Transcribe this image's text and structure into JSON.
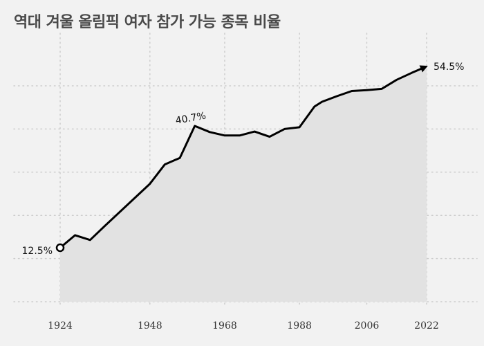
{
  "chart_data": {
    "type": "area",
    "title": "역대 겨울 올림픽 여자 참가 가능 종목 비율",
    "xlabel": "",
    "ylabel": "",
    "x_ticks": [
      "1924",
      "1948",
      "1968",
      "1988",
      "2006",
      "2022"
    ],
    "xlim": [
      1924,
      2022
    ],
    "ylim": [
      0,
      60
    ],
    "grid": true,
    "series": [
      {
        "x": [
          1924,
          1928,
          1932,
          1936,
          1948,
          1952,
          1956,
          1960,
          1964,
          1968,
          1972,
          1976,
          1980,
          1984,
          1988,
          1992,
          1994,
          1998,
          2002,
          2006,
          2010,
          2014,
          2018,
          2022
        ],
        "y": [
          12.5,
          15.4,
          14.3,
          17.6,
          27.3,
          31.8,
          33.3,
          40.7,
          39.3,
          38.5,
          38.5,
          39.4,
          38.2,
          40.0,
          40.4,
          45.2,
          46.3,
          47.6,
          48.8,
          49.0,
          49.3,
          51.4,
          53.0,
          54.5
        ]
      }
    ],
    "annotations": [
      {
        "x": 1924,
        "y": 12.5,
        "text": "12.5%"
      },
      {
        "x": 1960,
        "y": 40.7,
        "text": "40.7%"
      },
      {
        "x": 2022,
        "y": 54.5,
        "text": "54.5%"
      }
    ],
    "colors": {
      "line": "#000000",
      "area": "#e2e2e2",
      "grid": "#cccccc",
      "background": "#f2f2f2"
    }
  }
}
